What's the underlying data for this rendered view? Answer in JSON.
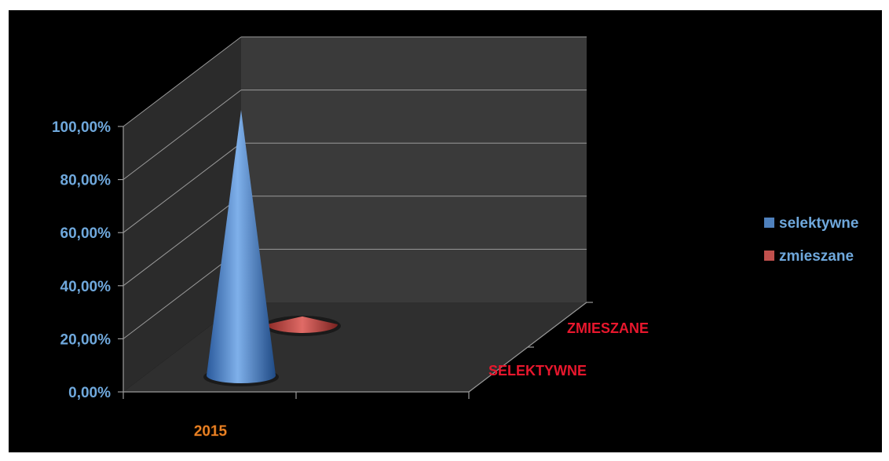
{
  "chart_data": {
    "type": "bar",
    "title": "",
    "categories": [
      "2015"
    ],
    "depth_categories": [
      "SELEKTYWNE",
      "ZMIESZANE"
    ],
    "series": [
      {
        "name": "selektywne",
        "values": [
          100.0
        ],
        "color": "#4f81bd"
      },
      {
        "name": "zmieszane",
        "values": [
          3.0
        ],
        "color": "#c0504d"
      }
    ],
    "y_ticks": [
      "0,00%",
      "20,00%",
      "40,00%",
      "60,00%",
      "80,00%",
      "100,00%"
    ],
    "ylim": [
      0,
      100
    ],
    "grid": true,
    "legend_position": "right",
    "colors": {
      "background": "#000000",
      "back_wall": "#3a3a3a",
      "side_wall": "#2b2b2b",
      "floor": "#2f2f2f",
      "grid": "#9a9a9a",
      "y_tick_label": "#6fa8dc",
      "x_tick_label": "#f0872a",
      "depth_label": "#e8172d"
    }
  }
}
